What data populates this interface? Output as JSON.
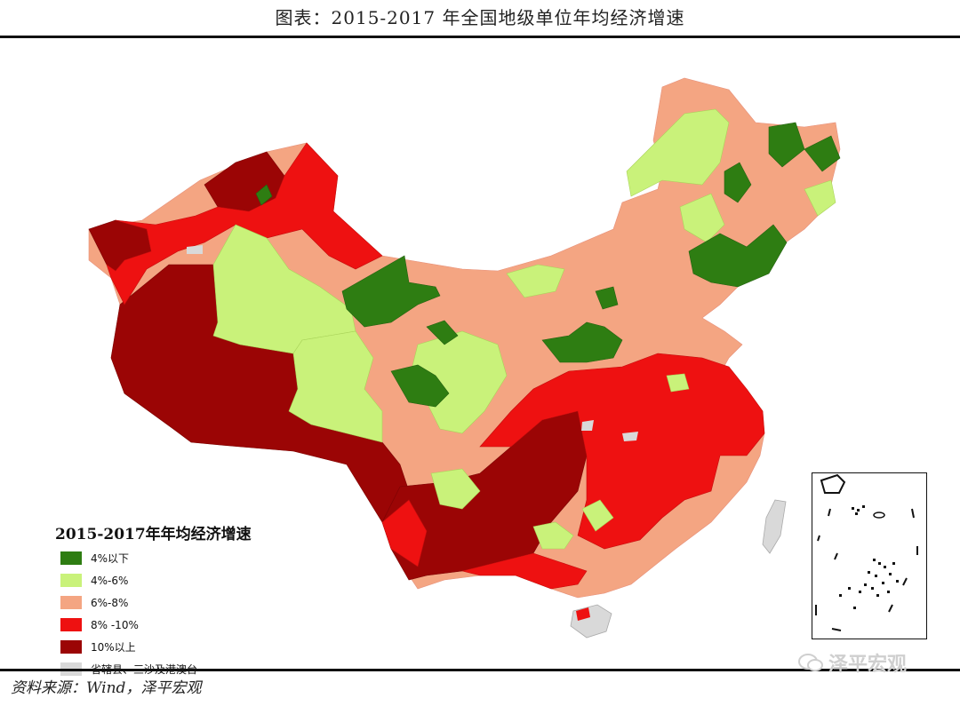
{
  "title": "图表：2015-2017 年全国地级单位年均经济增速",
  "legend": {
    "title": "2015-2017年年均经济增速",
    "items": [
      {
        "label": "4%以下",
        "color": "#2e7d12"
      },
      {
        "label": "4%-6%",
        "color": "#c9f27a"
      },
      {
        "label": "6%-8%",
        "color": "#f4a582"
      },
      {
        "label": "8% -10%",
        "color": "#ee1111"
      },
      {
        "label": "10%以上",
        "color": "#9b0505"
      },
      {
        "label": "省辖县、三沙及港澳台",
        "color": "#d9d9d9"
      }
    ]
  },
  "source": "资料来源：Wind，泽平宏观",
  "watermark": "泽平宏观"
}
